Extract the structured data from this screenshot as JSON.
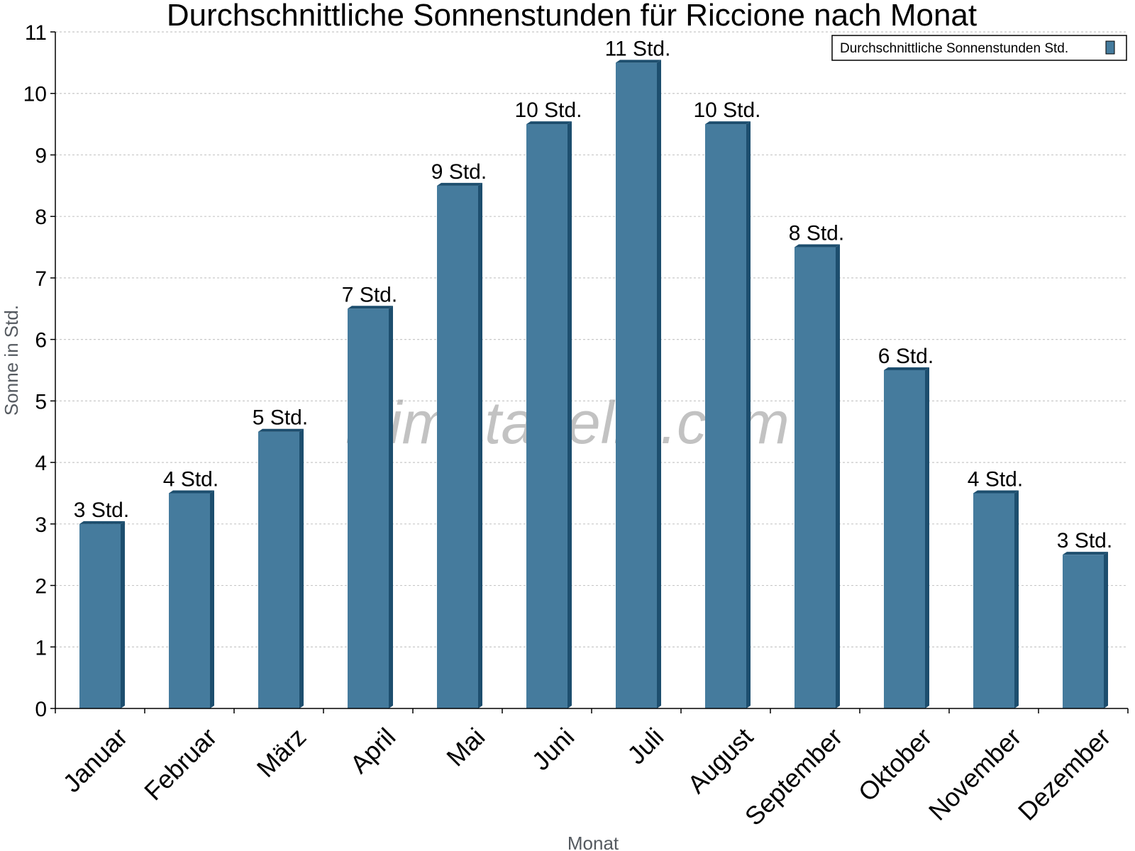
{
  "chart_data": {
    "type": "bar",
    "title": "Durchschnittliche Sonnenstunden für Riccione nach Monat",
    "xlabel": "Monat",
    "ylabel": "Sonne in Std.",
    "ylim": [
      0,
      11
    ],
    "yticks": [
      "0",
      "1",
      "2",
      "3",
      "4",
      "5",
      "6",
      "7",
      "8",
      "9",
      "10",
      "11"
    ],
    "grid": true,
    "legend_position": "top-right",
    "categories": [
      "Januar",
      "Februar",
      "März",
      "April",
      "Mai",
      "Juni",
      "Juli",
      "August",
      "September",
      "Oktober",
      "November",
      "Dezember"
    ],
    "series": [
      {
        "name": "Durchschnittliche Sonnenstunden Std.",
        "values": [
          3,
          3.5,
          4.5,
          6.5,
          8.5,
          9.5,
          10.5,
          9.5,
          7.5,
          5.5,
          3.5,
          2.5
        ],
        "labels": [
          "3 Std.",
          "4 Std.",
          "5 Std.",
          "7 Std.",
          "9 Std.",
          "10 Std.",
          "11 Std.",
          "10 Std.",
          "8 Std.",
          "6 Std.",
          "4 Std.",
          "3 Std."
        ],
        "color": "#457b9d",
        "side_color": "#1d4e6e"
      }
    ]
  },
  "watermark": "klimatabelle.com"
}
